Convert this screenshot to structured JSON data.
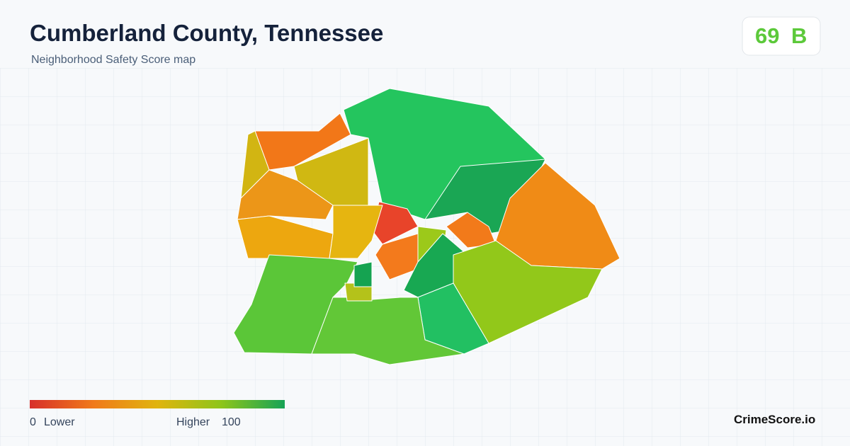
{
  "header": {
    "title": "Cumberland County, Tennessee",
    "subtitle": "Neighborhood Safety Score map"
  },
  "score": {
    "value": 69,
    "grade": "B"
  },
  "legend": {
    "min": 0,
    "min_label": "Lower",
    "max_label": "Higher",
    "max": 100
  },
  "brand": "CrimeScore.io"
}
